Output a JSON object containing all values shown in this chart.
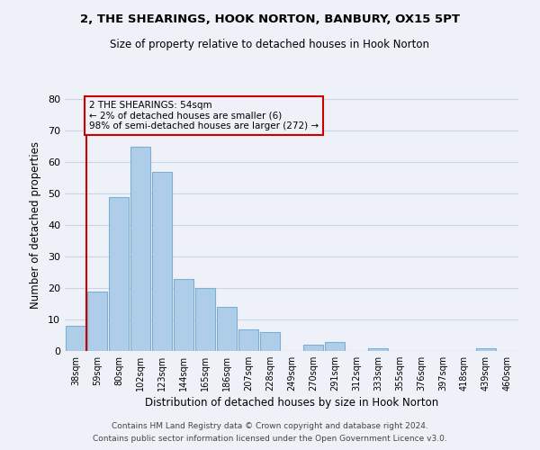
{
  "title": "2, THE SHEARINGS, HOOK NORTON, BANBURY, OX15 5PT",
  "subtitle": "Size of property relative to detached houses in Hook Norton",
  "xlabel": "Distribution of detached houses by size in Hook Norton",
  "ylabel": "Number of detached properties",
  "categories": [
    "38sqm",
    "59sqm",
    "80sqm",
    "102sqm",
    "123sqm",
    "144sqm",
    "165sqm",
    "186sqm",
    "207sqm",
    "228sqm",
    "249sqm",
    "270sqm",
    "291sqm",
    "312sqm",
    "333sqm",
    "355sqm",
    "376sqm",
    "397sqm",
    "418sqm",
    "439sqm",
    "460sqm"
  ],
  "values": [
    8,
    19,
    49,
    65,
    57,
    23,
    20,
    14,
    7,
    6,
    0,
    2,
    3,
    0,
    1,
    0,
    0,
    0,
    0,
    1,
    0
  ],
  "bar_color": "#aecde8",
  "bar_edge_color": "#7bafd4",
  "marker_line_color": "#cc0000",
  "ylim": [
    0,
    80
  ],
  "yticks": [
    0,
    10,
    20,
    30,
    40,
    50,
    60,
    70,
    80
  ],
  "grid_color": "#c8d4e8",
  "background_color": "#eef2f8",
  "annotation_text": "2 THE SHEARINGS: 54sqm\n← 2% of detached houses are smaller (6)\n98% of semi-detached houses are larger (272) →",
  "annotation_box_edge": "#cc0000",
  "footer_line1": "Contains HM Land Registry data © Crown copyright and database right 2024.",
  "footer_line2": "Contains public sector information licensed under the Open Government Licence v3.0."
}
